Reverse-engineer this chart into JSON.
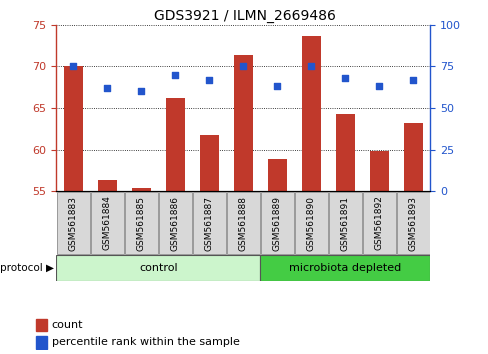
{
  "title": "GDS3921 / ILMN_2669486",
  "samples": [
    "GSM561883",
    "GSM561884",
    "GSM561885",
    "GSM561886",
    "GSM561887",
    "GSM561888",
    "GSM561889",
    "GSM561890",
    "GSM561891",
    "GSM561892",
    "GSM561893"
  ],
  "count_values": [
    70.1,
    56.3,
    55.4,
    66.2,
    61.8,
    71.4,
    58.9,
    73.7,
    64.3,
    59.8,
    63.2
  ],
  "percentile_values": [
    75,
    62,
    60,
    70,
    67,
    75,
    63,
    75,
    68,
    63,
    67
  ],
  "ylim_left": [
    55,
    75
  ],
  "ylim_right": [
    0,
    100
  ],
  "yticks_left": [
    55,
    60,
    65,
    70,
    75
  ],
  "yticks_right": [
    0,
    25,
    50,
    75,
    100
  ],
  "bar_color": "#c0392b",
  "dot_color": "#2255cc",
  "background_color": "#ffffff",
  "protocol_groups": [
    {
      "label": "control",
      "n": 6,
      "color": "#ccf5cc"
    },
    {
      "label": "microbiota depleted",
      "n": 5,
      "color": "#44cc44"
    }
  ],
  "legend_items": [
    {
      "label": "count",
      "color": "#c0392b"
    },
    {
      "label": "percentile rank within the sample",
      "color": "#2255cc"
    }
  ],
  "protocol_label": "protocol",
  "title_fontsize": 10,
  "axis_fontsize": 8,
  "tick_fontsize": 8,
  "sample_fontsize": 6.5
}
